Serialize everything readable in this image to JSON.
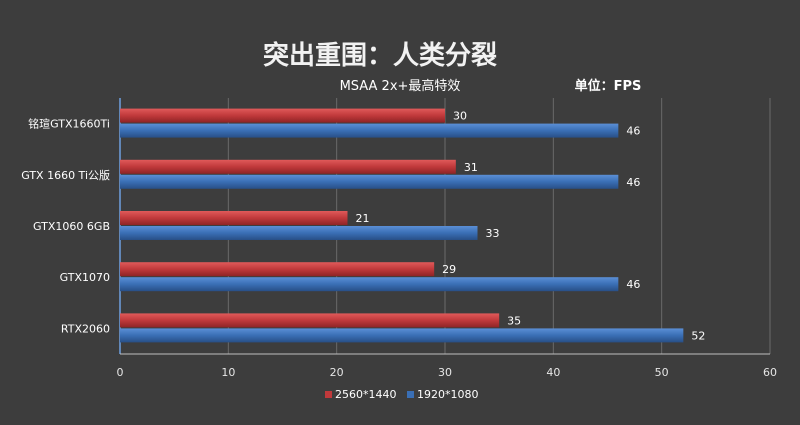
{
  "chart_data": {
    "type": "bar",
    "orientation": "horizontal",
    "title": "突出重围：人类分裂",
    "subtitle": "MSAA 2x+最高特效",
    "unit_label": "单位：FPS",
    "categories": [
      "铭瑄GTX1660Ti",
      "GTX 1660 Ti公版",
      "GTX1060 6GB",
      "GTX1070",
      "RTX2060"
    ],
    "series": [
      {
        "name": "2560*1440",
        "values": [
          30,
          31,
          21,
          29,
          35
        ],
        "color": "#c0393b"
      },
      {
        "name": "1920*1080",
        "values": [
          46,
          46,
          33,
          46,
          52
        ],
        "color": "#3a6fb5"
      }
    ],
    "xlim": [
      0,
      60
    ],
    "xticks": [
      0,
      10,
      20,
      30,
      40,
      50,
      60
    ],
    "grid": true,
    "legend_position": "bottom-center"
  }
}
